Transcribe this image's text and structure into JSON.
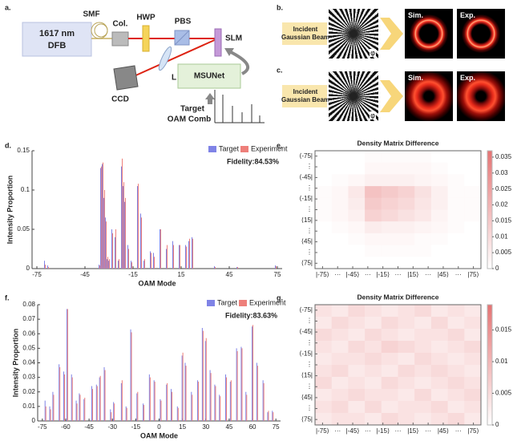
{
  "figure": {
    "a": {
      "label": "a.",
      "laser": [
        "1617 nm",
        "DFB"
      ],
      "smf": "SMF",
      "collimator": "Col.",
      "hwp": "HWP",
      "pbs": "PBS",
      "slm": "SLM",
      "ccd": "CCD",
      "lens": "L",
      "network": "MSUNet",
      "target": [
        "Target",
        "OAM Comb"
      ]
    },
    "b": {
      "label": "b.",
      "input": [
        "Incident",
        "Gaussian Beam"
      ],
      "phase": "φ",
      "sim": "Sim.",
      "exp": "Exp."
    },
    "c": {
      "label": "c.",
      "input": [
        "Incident",
        "Gaussian Beam"
      ],
      "phase": "φ",
      "sim": "Sim.",
      "exp": "Exp."
    }
  },
  "chart_data": [
    {
      "type": "bar",
      "label": "d.",
      "xlabel": "OAM Mode",
      "ylabel": "Intensity Proportion",
      "annotation": "Fidelity:84.53%",
      "legend": "upper right",
      "x": [
        -70,
        -68,
        -36,
        -35,
        -34,
        -33,
        -32,
        -31,
        -30,
        -28,
        -26,
        -24,
        -22,
        -21,
        -20,
        -18,
        -16,
        -12,
        -10,
        -8,
        -4,
        -2,
        2,
        6,
        10,
        14,
        18,
        20,
        22,
        36,
        50,
        74
      ],
      "series": [
        {
          "name": "Target",
          "color": "#7f83e6",
          "values": [
            0.01,
            0.004,
            0.005,
            0.128,
            0.133,
            0.09,
            0.065,
            0.012,
            0.01,
            0.05,
            0.04,
            0.01,
            0.13,
            0.105,
            0.085,
            0.03,
            0.01,
            0.105,
            0.07,
            0.01,
            0.022,
            0.02,
            0.05,
            0.025,
            0.035,
            0.03,
            0.03,
            0.035,
            0.04,
            0.003,
            0.002,
            0.004
          ]
        },
        {
          "name": "Experiment",
          "color": "#ee7f7a",
          "values": [
            0.005,
            0.002,
            0.004,
            0.13,
            0.135,
            0.1,
            0.06,
            0.015,
            0.012,
            0.045,
            0.05,
            0.012,
            0.14,
            0.11,
            0.09,
            0.025,
            0.008,
            0.108,
            0.065,
            0.012,
            0.02,
            0.015,
            0.05,
            0.03,
            0.03,
            0.03,
            0.028,
            0.038,
            0.038,
            0.002,
            0.002,
            0.003
          ]
        }
      ],
      "xlim": [
        -78,
        78
      ],
      "xticks": [
        -75,
        -45,
        -15,
        15,
        45,
        75
      ],
      "ylim": [
        0,
        0.15
      ],
      "yticks": [
        0,
        0.05,
        0.1,
        0.15
      ]
    },
    {
      "type": "heatmap",
      "label": "e.",
      "title": "Density Matrix Difference",
      "xlim": [
        -82.5,
        82.5
      ],
      "ylim": [
        -82.5,
        82.5
      ],
      "xticks": [
        {
          "value": -75,
          "label": "|-75⟩"
        },
        {
          "value": -60,
          "label": "···"
        },
        {
          "value": -45,
          "label": "|-45⟩"
        },
        {
          "value": -30,
          "label": "···"
        },
        {
          "value": -15,
          "label": "|-15⟩"
        },
        {
          "value": 0,
          "label": "···"
        },
        {
          "value": 15,
          "label": "|15⟩"
        },
        {
          "value": 30,
          "label": "···"
        },
        {
          "value": 45,
          "label": "|45⟩"
        },
        {
          "value": 60,
          "label": "···"
        },
        {
          "value": 75,
          "label": "|75⟩"
        }
      ],
      "yticks": [
        {
          "value": -75,
          "label": "⟨-75|"
        },
        {
          "value": -60,
          "label": "⋮"
        },
        {
          "value": -45,
          "label": "⟨-45|"
        },
        {
          "value": -30,
          "label": "⋮"
        },
        {
          "value": -15,
          "label": "⟨-15|"
        },
        {
          "value": 0,
          "label": "⋮"
        },
        {
          "value": 15,
          "label": "⟨15|"
        },
        {
          "value": 30,
          "label": "⋮"
        },
        {
          "value": 45,
          "label": "⟨45|"
        },
        {
          "value": 60,
          "label": "⋮"
        },
        {
          "value": 75,
          "label": "⟨75|"
        }
      ],
      "z": [
        [
          0,
          0,
          0,
          0.001,
          0.001,
          0.001,
          0.001,
          0,
          0,
          0
        ],
        [
          0,
          0,
          0,
          0.002,
          0.002,
          0.002,
          0.002,
          0.001,
          0,
          0
        ],
        [
          0,
          0.001,
          0.002,
          0.004,
          0.004,
          0.004,
          0.003,
          0.002,
          0.001,
          0
        ],
        [
          0.001,
          0.002,
          0.006,
          0.016,
          0.014,
          0.012,
          0.008,
          0.004,
          0.001,
          0.001
        ],
        [
          0.001,
          0.002,
          0.005,
          0.014,
          0.012,
          0.01,
          0.007,
          0.004,
          0.001,
          0.001
        ],
        [
          0.001,
          0.002,
          0.004,
          0.012,
          0.01,
          0.008,
          0.006,
          0.003,
          0.001,
          0.001
        ],
        [
          0,
          0.001,
          0.002,
          0.005,
          0.004,
          0.004,
          0.003,
          0.002,
          0.001,
          0
        ],
        [
          0,
          0,
          0.001,
          0.002,
          0.002,
          0.002,
          0.001,
          0.001,
          0,
          0
        ],
        [
          0,
          0,
          0,
          0.001,
          0.001,
          0.001,
          0.001,
          0,
          0,
          0
        ],
        [
          0,
          0,
          0,
          0,
          0,
          0,
          0,
          0,
          0,
          0
        ]
      ],
      "zlim": [
        0,
        0.037
      ],
      "zticks": [
        0,
        0.005,
        0.01,
        0.015,
        0.02,
        0.025,
        0.03,
        0.035
      ],
      "colormap": [
        "#ffffff",
        "#e57373"
      ]
    },
    {
      "type": "bar",
      "label": "f.",
      "xlabel": "OAM Mode",
      "ylabel": "Intensity Proportion",
      "annotation": "Fidelity:83.63%",
      "legend": "upper right",
      "x": [
        -73,
        -70,
        -68,
        -64,
        -61,
        -59,
        -56,
        -53,
        -51,
        -48,
        -43,
        -40,
        -38,
        -35,
        -31,
        -29,
        -24,
        -21,
        -18,
        -14,
        -10,
        -6,
        -3,
        1,
        5,
        8,
        12,
        15,
        17,
        21,
        25,
        28,
        30,
        33,
        36,
        39,
        43,
        46,
        50,
        53,
        56,
        60,
        63,
        67,
        70,
        73
      ],
      "series": [
        {
          "name": "Target",
          "color": "#7f83e6",
          "values": [
            0.014,
            0.01,
            0.02,
            0.039,
            0.034,
            0.077,
            0.032,
            0.014,
            0.019,
            0.015,
            0.024,
            0.025,
            0.03,
            0.037,
            0.008,
            0.013,
            0.026,
            0.01,
            0.063,
            0.019,
            0.012,
            0.032,
            0.028,
            0.015,
            0.025,
            0.022,
            0.01,
            0.045,
            0.04,
            0.02,
            0.028,
            0.064,
            0.055,
            0.035,
            0.025,
            0.018,
            0.032,
            0.027,
            0.05,
            0.051,
            0.02,
            0.065,
            0.04,
            0.028,
            0.006,
            0.007
          ]
        },
        {
          "name": "Experiment",
          "color": "#ee7f7a",
          "values": [
            0.01,
            0.008,
            0.018,
            0.037,
            0.032,
            0.077,
            0.03,
            0.012,
            0.018,
            0.016,
            0.022,
            0.024,
            0.031,
            0.035,
            0.006,
            0.012,
            0.028,
            0.009,
            0.061,
            0.02,
            0.011,
            0.03,
            0.027,
            0.014,
            0.026,
            0.02,
            0.009,
            0.047,
            0.038,
            0.018,
            0.027,
            0.062,
            0.057,
            0.033,
            0.024,
            0.017,
            0.03,
            0.028,
            0.048,
            0.05,
            0.018,
            0.066,
            0.038,
            0.026,
            0.007,
            0.006
          ]
        }
      ],
      "xlim": [
        -78,
        78
      ],
      "xticks": [
        -75,
        -60,
        -45,
        -30,
        -15,
        0,
        15,
        30,
        45,
        60,
        75
      ],
      "ylim": [
        0,
        0.08
      ],
      "yticks": [
        0,
        0.01,
        0.02,
        0.03,
        0.04,
        0.05,
        0.06,
        0.07,
        0.08
      ]
    },
    {
      "type": "heatmap",
      "label": "g.",
      "title": "Density Matrix Difference",
      "xlim": [
        -82.5,
        82.5
      ],
      "ylim": [
        -82.5,
        82.5
      ],
      "xticks": [
        {
          "value": -75,
          "label": "|-75⟩"
        },
        {
          "value": -60,
          "label": "···"
        },
        {
          "value": -45,
          "label": "|-45⟩"
        },
        {
          "value": -30,
          "label": "···"
        },
        {
          "value": -15,
          "label": "|-15⟩"
        },
        {
          "value": 0,
          "label": "···"
        },
        {
          "value": 15,
          "label": "|15⟩"
        },
        {
          "value": 30,
          "label": "···"
        },
        {
          "value": 45,
          "label": "|45⟩"
        },
        {
          "value": 60,
          "label": "···"
        },
        {
          "value": 75,
          "label": "|75⟩"
        }
      ],
      "yticks": [
        {
          "value": -75,
          "label": "⟨-75|"
        },
        {
          "value": -60,
          "label": "⋮"
        },
        {
          "value": -45,
          "label": "⟨-45|"
        },
        {
          "value": -30,
          "label": "⋮"
        },
        {
          "value": -15,
          "label": "⟨-15|"
        },
        {
          "value": 0,
          "label": "⋮"
        },
        {
          "value": 15,
          "label": "⟨15|"
        },
        {
          "value": 30,
          "label": "⋮"
        },
        {
          "value": 45,
          "label": "⟨45|"
        },
        {
          "value": 60,
          "label": "⋮"
        },
        {
          "value": 75,
          "label": "⟨75|"
        }
      ],
      "z": [
        [
          0.004,
          0.003,
          0.005,
          0.004,
          0.003,
          0.004,
          0.005,
          0.003,
          0.004,
          0.003
        ],
        [
          0.003,
          0.005,
          0.004,
          0.003,
          0.005,
          0.004,
          0.003,
          0.005,
          0.003,
          0.004
        ],
        [
          0.005,
          0.004,
          0.003,
          0.005,
          0.004,
          0.003,
          0.004,
          0.004,
          0.005,
          0.003
        ],
        [
          0.004,
          0.003,
          0.005,
          0.004,
          0.006,
          0.005,
          0.004,
          0.003,
          0.004,
          0.005
        ],
        [
          0.003,
          0.004,
          0.004,
          0.005,
          0.004,
          0.003,
          0.005,
          0.004,
          0.003,
          0.004
        ],
        [
          0.004,
          0.005,
          0.003,
          0.004,
          0.003,
          0.005,
          0.004,
          0.005,
          0.004,
          0.003
        ],
        [
          0.005,
          0.003,
          0.004,
          0.003,
          0.005,
          0.004,
          0.003,
          0.004,
          0.005,
          0.004
        ],
        [
          0.003,
          0.004,
          0.005,
          0.004,
          0.004,
          0.003,
          0.005,
          0.003,
          0.004,
          0.005
        ],
        [
          0.004,
          0.005,
          0.003,
          0.005,
          0.003,
          0.004,
          0.004,
          0.005,
          0.003,
          0.004
        ],
        [
          0.003,
          0.004,
          0.004,
          0.003,
          0.005,
          0.004,
          0.003,
          0.004,
          0.005,
          0.003
        ]
      ],
      "zlim": [
        0,
        0.019
      ],
      "zticks": [
        0,
        0.005,
        0.01,
        0.015
      ],
      "colormap": [
        "#ffffff",
        "#e57373"
      ]
    }
  ]
}
